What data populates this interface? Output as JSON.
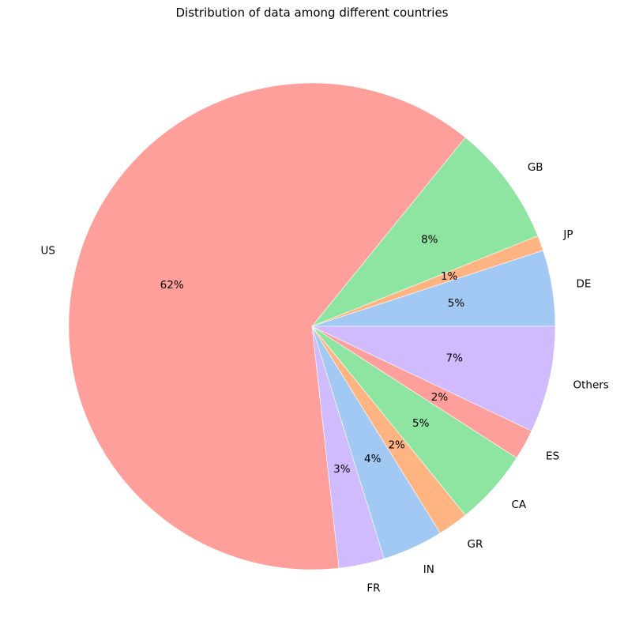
{
  "chart_data": {
    "type": "pie",
    "title": "Distribution of data among different countries",
    "start_angle_deg": 0,
    "direction": "counterclockwise",
    "slices": [
      {
        "label": "DE",
        "value": 5,
        "pct_label": "5%",
        "color": "#a1c9f4"
      },
      {
        "label": "JP",
        "value": 1,
        "pct_label": "1%",
        "color": "#ffb482"
      },
      {
        "label": "GB",
        "value": 8,
        "pct_label": "8%",
        "color": "#8de5a1"
      },
      {
        "label": "US",
        "value": 62,
        "pct_label": "62%",
        "color": "#ff9f9b"
      },
      {
        "label": "FR",
        "value": 3,
        "pct_label": "3%",
        "color": "#d0bbff"
      },
      {
        "label": "IN",
        "value": 4,
        "pct_label": "4%",
        "color": "#a1c9f4"
      },
      {
        "label": "GR",
        "value": 2,
        "pct_label": "2%",
        "color": "#ffb482"
      },
      {
        "label": "CA",
        "value": 5,
        "pct_label": "5%",
        "color": "#8de5a1"
      },
      {
        "label": "ES",
        "value": 2,
        "pct_label": "2%",
        "color": "#ff9f9b"
      },
      {
        "label": "Others",
        "value": 7,
        "pct_label": "7%",
        "color": "#d0bbff"
      }
    ]
  }
}
